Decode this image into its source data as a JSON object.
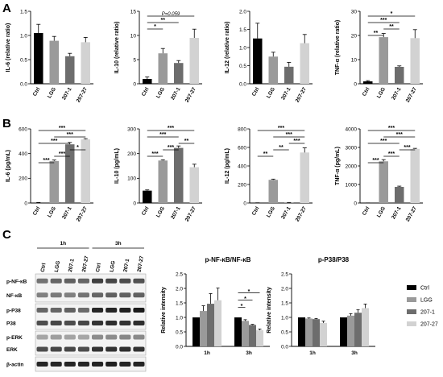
{
  "panels": [
    "A",
    "B",
    "C"
  ],
  "colors": {
    "Ctrl": "#000000",
    "LGG": "#9a9a9a",
    "207-1": "#6d6d6d",
    "207-27": "#d2d2d2"
  },
  "chart_data": [
    {
      "id": "A1",
      "type": "bar",
      "panel": "A",
      "categories": [
        "Ctrl",
        "LGG",
        "207-1",
        "207-27"
      ],
      "values": [
        1.05,
        0.89,
        0.57,
        0.86
      ],
      "errors": [
        0.18,
        0.09,
        0.06,
        0.1
      ],
      "ylabel": "IL-6 (relative ratio)",
      "ylim": [
        0,
        1.5
      ],
      "yticks": [
        "0.0",
        "0.5",
        "1.0",
        "1.5"
      ],
      "ytick_values": [
        0,
        0.5,
        1,
        1.5
      ],
      "significance": []
    },
    {
      "id": "A2",
      "type": "bar",
      "panel": "A",
      "categories": [
        "Ctrl",
        "LGG",
        "207-1",
        "207-27"
      ],
      "values": [
        1.0,
        6.3,
        4.3,
        9.5
      ],
      "errors": [
        0.4,
        1.0,
        0.5,
        1.8
      ],
      "ylabel": "IL-10 (relative ratio)",
      "ylim": [
        0,
        15
      ],
      "yticks": [
        "0",
        "5",
        "10",
        "15"
      ],
      "ytick_values": [
        0,
        5,
        10,
        15
      ],
      "significance": [
        {
          "from": 0,
          "to": 1,
          "label": "*"
        },
        {
          "from": 0,
          "to": 2,
          "label": "**"
        },
        {
          "from": 0,
          "to": 3,
          "label": "P=0.059"
        }
      ]
    },
    {
      "id": "A3",
      "type": "bar",
      "panel": "A",
      "categories": [
        "Ctrl",
        "LGG",
        "207-1",
        "207-27"
      ],
      "values": [
        1.25,
        0.75,
        0.47,
        1.12
      ],
      "errors": [
        0.42,
        0.12,
        0.12,
        0.24
      ],
      "ylabel": "IL-12 (relative ratio)",
      "ylim": [
        0,
        2.0
      ],
      "yticks": [
        "0.0",
        "0.5",
        "1.0",
        "1.5",
        "2.0"
      ],
      "ytick_values": [
        0,
        0.5,
        1,
        1.5,
        2
      ],
      "significance": []
    },
    {
      "id": "A4",
      "type": "bar",
      "panel": "A",
      "categories": [
        "Ctrl",
        "LGG",
        "207-1",
        "207-27"
      ],
      "values": [
        1.0,
        19.3,
        7.0,
        18.9
      ],
      "errors": [
        0.3,
        1.5,
        0.4,
        3.5
      ],
      "ylabel": "TNF-α (relative ratio)",
      "ylim": [
        0,
        30
      ],
      "yticks": [
        "0",
        "10",
        "20",
        "30"
      ],
      "ytick_values": [
        0,
        10,
        20,
        30
      ],
      "significance": [
        {
          "from": 0,
          "to": 1,
          "label": "**"
        },
        {
          "from": 1,
          "to": 2,
          "label": "**"
        },
        {
          "from": 0,
          "to": 2,
          "label": "***"
        },
        {
          "from": 0,
          "to": 3,
          "label": "*"
        }
      ]
    },
    {
      "id": "B1",
      "type": "bar",
      "panel": "B",
      "categories": [
        "Ctrl",
        "LGG",
        "207-1",
        "207-27"
      ],
      "values": [
        3,
        340,
        475,
        515
      ],
      "errors": [
        1,
        8,
        15,
        6
      ],
      "ylabel": "IL-6 (pg/mL)",
      "ylim": [
        0,
        600
      ],
      "yticks": [
        "0",
        "200",
        "400",
        "600"
      ],
      "ytick_values": [
        0,
        200,
        400,
        600
      ],
      "significance": [
        {
          "from": 0,
          "to": 1,
          "label": "***"
        },
        {
          "from": 1,
          "to": 2,
          "label": "***"
        },
        {
          "from": 2,
          "to": 3,
          "label": "*"
        },
        {
          "from": 0,
          "to": 2,
          "label": "***"
        },
        {
          "from": 1,
          "to": 3,
          "label": "***"
        },
        {
          "from": 0,
          "to": 3,
          "label": "***"
        }
      ]
    },
    {
      "id": "B2",
      "type": "bar",
      "panel": "B",
      "categories": [
        "Ctrl",
        "LGG",
        "207-1",
        "207-27"
      ],
      "values": [
        50,
        172,
        223,
        145
      ],
      "errors": [
        3,
        3,
        8,
        12
      ],
      "ylabel": "IL-10 (pg/mL)",
      "ylim": [
        0,
        300
      ],
      "yticks": [
        "0",
        "100",
        "200",
        "300"
      ],
      "ytick_values": [
        0,
        100,
        200,
        300
      ],
      "significance": [
        {
          "from": 0,
          "to": 1,
          "label": "***"
        },
        {
          "from": 1,
          "to": 2,
          "label": "***"
        },
        {
          "from": 2,
          "to": 3,
          "label": "**"
        },
        {
          "from": 0,
          "to": 2,
          "label": "***"
        },
        {
          "from": 0,
          "to": 3,
          "label": "***"
        }
      ]
    },
    {
      "id": "B3",
      "type": "bar",
      "panel": "B",
      "categories": [
        "Ctrl",
        "LGG",
        "207-1",
        "207-27"
      ],
      "values": [
        2,
        250,
        5,
        545
      ],
      "errors": [
        0.5,
        8,
        1,
        50
      ],
      "ylabel": "IL-12 (pg/mL)",
      "ylim": [
        0,
        800
      ],
      "yticks": [
        "0",
        "200",
        "400",
        "600",
        "800"
      ],
      "ytick_values": [
        0,
        200,
        400,
        600,
        800
      ],
      "significance": [
        {
          "from": 0,
          "to": 1,
          "label": "**"
        },
        {
          "from": 1,
          "to": 2,
          "label": "**"
        },
        {
          "from": 2,
          "to": 3,
          "label": "***"
        },
        {
          "from": 1,
          "to": 3,
          "label": "***"
        },
        {
          "from": 0,
          "to": 3,
          "label": "***"
        }
      ]
    },
    {
      "id": "B4",
      "type": "bar",
      "panel": "B",
      "categories": [
        "Ctrl",
        "LGG",
        "207-1",
        "207-27"
      ],
      "values": [
        5,
        2250,
        870,
        2920
      ],
      "errors": [
        2,
        90,
        40,
        30
      ],
      "ylabel": "TNF-α (pg/mL)",
      "ylim": [
        0,
        4000
      ],
      "yticks": [
        "0",
        "1000",
        "2000",
        "3000",
        "4000"
      ],
      "ytick_values": [
        0,
        1000,
        2000,
        3000,
        4000
      ],
      "significance": [
        {
          "from": 0,
          "to": 1,
          "label": "***"
        },
        {
          "from": 1,
          "to": 2,
          "label": "***"
        },
        {
          "from": 2,
          "to": 3,
          "label": "***"
        },
        {
          "from": 0,
          "to": 2,
          "label": "***"
        },
        {
          "from": 1,
          "to": 3,
          "label": "***"
        },
        {
          "from": 0,
          "to": 3,
          "label": "***"
        }
      ]
    },
    {
      "id": "C2",
      "type": "bar",
      "panel": "C",
      "title": "p-NF-κB/NF-κB",
      "categories": [
        "1h",
        "3h"
      ],
      "series": [
        {
          "name": "Ctrl",
          "values": [
            1.0,
            1.0
          ],
          "errors": [
            0.0,
            0.0
          ]
        },
        {
          "name": "LGG",
          "values": [
            1.22,
            0.88
          ],
          "errors": [
            0.18,
            0.04
          ]
        },
        {
          "name": "207-1",
          "values": [
            1.47,
            0.74
          ],
          "errors": [
            0.35,
            0.02
          ]
        },
        {
          "name": "207-27",
          "values": [
            1.59,
            0.56
          ],
          "errors": [
            0.42,
            0.04
          ]
        }
      ],
      "ylabel": "Relative intensity",
      "ylim": [
        0,
        2.5
      ],
      "yticks": [
        "0.0",
        "0.5",
        "1.0",
        "1.5",
        "2.0",
        "2.5"
      ],
      "ytick_values": [
        0,
        0.5,
        1,
        1.5,
        2,
        2.5
      ],
      "significance": [
        {
          "group": 1,
          "from": 0,
          "to": 1,
          "label": "*"
        },
        {
          "group": 1,
          "from": 0,
          "to": 2,
          "label": "*"
        },
        {
          "group": 1,
          "from": 0,
          "to": 3,
          "label": "*"
        }
      ]
    },
    {
      "id": "C3",
      "type": "bar",
      "panel": "C",
      "title": "p-P38/P38",
      "categories": [
        "1h",
        "3h"
      ],
      "series": [
        {
          "name": "Ctrl",
          "values": [
            1.0,
            1.0
          ],
          "errors": [
            0.0,
            0.0
          ]
        },
        {
          "name": "LGG",
          "values": [
            0.96,
            1.06
          ],
          "errors": [
            0.02,
            0.07
          ]
        },
        {
          "name": "207-1",
          "values": [
            0.94,
            1.16
          ],
          "errors": [
            0.02,
            0.1
          ]
        },
        {
          "name": "207-27",
          "values": [
            0.81,
            1.32
          ],
          "errors": [
            0.06,
            0.14
          ]
        }
      ],
      "ylabel": "Relative intensity",
      "ylim": [
        0,
        2.5
      ],
      "yticks": [
        "0.0",
        "0.5",
        "1.0",
        "1.5",
        "2.0",
        "2.5"
      ],
      "ytick_values": [
        0,
        0.5,
        1,
        1.5,
        2,
        2.5
      ],
      "significance": []
    }
  ],
  "blot": {
    "time_labels": [
      "1h",
      "3h"
    ],
    "lane_labels": [
      "Ctrl",
      "LGG",
      "207-1",
      "207-27",
      "Ctrl",
      "LGG",
      "207-1",
      "207-27"
    ],
    "rows": [
      {
        "label": "p-NF-κB",
        "intensity": [
          0.55,
          0.6,
          0.62,
          0.6,
          0.75,
          0.72,
          0.7,
          0.68
        ]
      },
      {
        "label": "NF-κB",
        "intensity": [
          0.5,
          0.52,
          0.5,
          0.55,
          0.6,
          0.62,
          0.62,
          0.62
        ]
      },
      {
        "label": "p-P38",
        "intensity": [
          0.6,
          0.6,
          0.62,
          0.58,
          0.85,
          0.85,
          0.87,
          0.9
        ]
      },
      {
        "label": "P38",
        "intensity": [
          0.7,
          0.72,
          0.7,
          0.72,
          0.8,
          0.82,
          0.8,
          0.82
        ]
      },
      {
        "label": "p-ERK",
        "intensity": [
          0.35,
          0.38,
          0.36,
          0.35,
          0.45,
          0.45,
          0.47,
          0.46
        ]
      },
      {
        "label": "ERK",
        "intensity": [
          0.7,
          0.72,
          0.72,
          0.7,
          0.8,
          0.8,
          0.82,
          0.8
        ]
      },
      {
        "label": "β-actin",
        "intensity": [
          0.85,
          0.85,
          0.86,
          0.85,
          0.86,
          0.87,
          0.86,
          0.86
        ]
      }
    ]
  },
  "legend": [
    "Ctrl",
    "LGG",
    "207-1",
    "207-27"
  ]
}
